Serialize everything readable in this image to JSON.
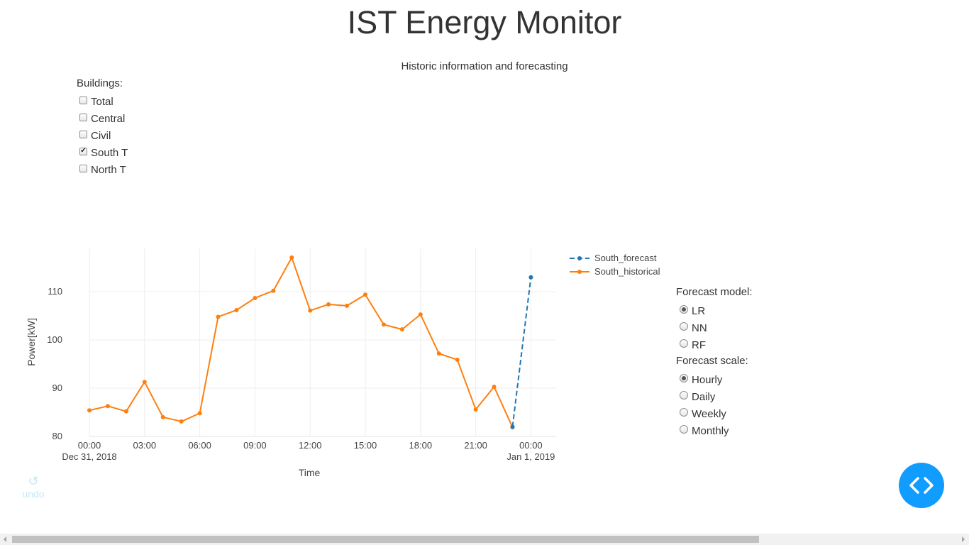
{
  "header": {
    "title": "IST Energy Monitor",
    "subtitle": "Historic information and forecasting"
  },
  "buildings": {
    "label": "Buildings:",
    "options": [
      {
        "label": "Total",
        "checked": false
      },
      {
        "label": "Central",
        "checked": false
      },
      {
        "label": "Civil",
        "checked": false
      },
      {
        "label": "South T",
        "checked": true
      },
      {
        "label": "North T",
        "checked": false
      }
    ]
  },
  "forecast_model": {
    "label": "Forecast model:",
    "options": [
      {
        "label": "LR",
        "selected": true
      },
      {
        "label": "NN",
        "selected": false
      },
      {
        "label": "RF",
        "selected": false
      }
    ]
  },
  "forecast_scale": {
    "label": "Forecast scale:",
    "options": [
      {
        "label": "Hourly",
        "selected": true
      },
      {
        "label": "Daily",
        "selected": false
      },
      {
        "label": "Weekly",
        "selected": false
      },
      {
        "label": "Monthly",
        "selected": false
      }
    ]
  },
  "undo": {
    "label": "undo",
    "icon": "undo-icon"
  },
  "debug_button": {
    "icon": "code-icon",
    "color": "#119dff"
  },
  "chart_data": {
    "type": "line",
    "title": "",
    "xlabel": "Time",
    "ylabel": "Power[kW]",
    "ylim": [
      80,
      119
    ],
    "grid": true,
    "legend_position": "top-right",
    "x_tick_labels": [
      "00:00",
      "03:00",
      "06:00",
      "09:00",
      "12:00",
      "15:00",
      "18:00",
      "21:00",
      "00:00"
    ],
    "x_tick_dates": [
      "Dec 31, 2018",
      "",
      "",
      "",
      "",
      "",
      "",
      "",
      "Jan 1, 2019"
    ],
    "y_ticks": [
      80,
      90,
      100,
      110
    ],
    "series": [
      {
        "name": "South_forecast",
        "color": "#1f77b4",
        "dash": "dashed",
        "x": [
          "2018-12-31 23:00",
          "2019-01-01 00:00"
        ],
        "values": [
          82,
          113
        ]
      },
      {
        "name": "South_historical",
        "color": "#ff7f0e",
        "dash": "solid",
        "x": [
          "2018-12-31 00:00",
          "2018-12-31 01:00",
          "2018-12-31 02:00",
          "2018-12-31 03:00",
          "2018-12-31 04:00",
          "2018-12-31 05:00",
          "2018-12-31 06:00",
          "2018-12-31 07:00",
          "2018-12-31 08:00",
          "2018-12-31 09:00",
          "2018-12-31 10:00",
          "2018-12-31 11:00",
          "2018-12-31 12:00",
          "2018-12-31 13:00",
          "2018-12-31 14:00",
          "2018-12-31 15:00",
          "2018-12-31 16:00",
          "2018-12-31 17:00",
          "2018-12-31 18:00",
          "2018-12-31 19:00",
          "2018-12-31 20:00",
          "2018-12-31 21:00",
          "2018-12-31 22:00",
          "2018-12-31 23:00"
        ],
        "values": [
          85.4,
          86.3,
          85.2,
          91.3,
          84.0,
          83.1,
          84.8,
          104.8,
          106.2,
          108.7,
          110.2,
          117.1,
          106.1,
          107.4,
          107.1,
          109.4,
          103.2,
          102.2,
          105.3,
          97.2,
          95.9,
          85.6,
          90.3,
          81.9
        ]
      }
    ]
  }
}
